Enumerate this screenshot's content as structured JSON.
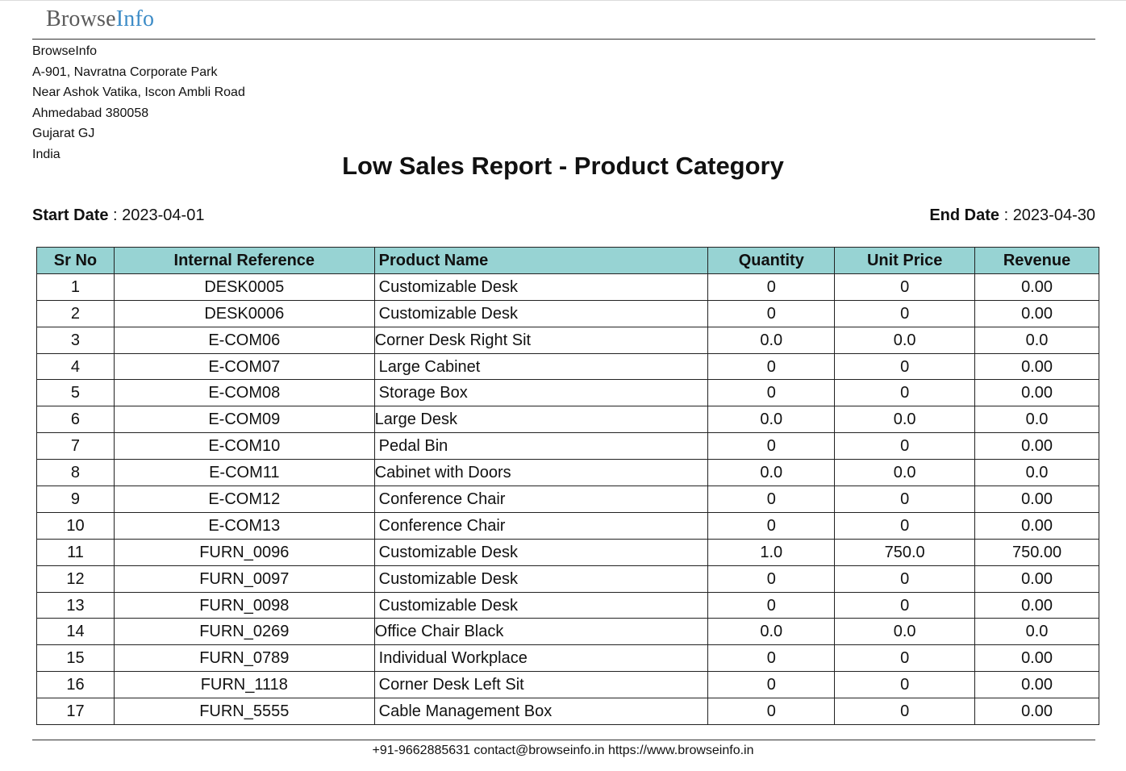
{
  "brand": {
    "part1": "Browse",
    "part2": "Info"
  },
  "company": {
    "lines": [
      "BrowseInfo",
      "A-901, Navratna Corporate Park",
      "Near Ashok Vatika, Iscon Ambli Road",
      "Ahmedabad 380058",
      "Gujarat GJ",
      "India"
    ]
  },
  "report": {
    "title": "Low Sales Report - Product Category",
    "start_label": "Start Date",
    "start_value": "2023-04-01",
    "end_label": "End Date",
    "end_value": "2023-04-30",
    "separator": " : "
  },
  "table": {
    "headers": [
      "Sr No",
      "Internal Reference",
      "Product Name",
      "Quantity",
      "Unit Price",
      "Revenue"
    ],
    "rows": [
      {
        "sr": "1",
        "ref": "DESK0005",
        "name": "Customizable Desk",
        "qty": "0",
        "price": "0",
        "revenue": "0.00",
        "tight": false
      },
      {
        "sr": "2",
        "ref": "DESK0006",
        "name": "Customizable Desk",
        "qty": "0",
        "price": "0",
        "revenue": "0.00",
        "tight": false
      },
      {
        "sr": "3",
        "ref": "E-COM06",
        "name": "Corner Desk Right Sit",
        "qty": "0.0",
        "price": "0.0",
        "revenue": "0.0",
        "tight": true
      },
      {
        "sr": "4",
        "ref": "E-COM07",
        "name": "Large Cabinet",
        "qty": "0",
        "price": "0",
        "revenue": "0.00",
        "tight": false
      },
      {
        "sr": "5",
        "ref": "E-COM08",
        "name": "Storage Box",
        "qty": "0",
        "price": "0",
        "revenue": "0.00",
        "tight": false
      },
      {
        "sr": "6",
        "ref": "E-COM09",
        "name": "Large Desk",
        "qty": "0.0",
        "price": "0.0",
        "revenue": "0.0",
        "tight": true
      },
      {
        "sr": "7",
        "ref": "E-COM10",
        "name": "Pedal Bin",
        "qty": "0",
        "price": "0",
        "revenue": "0.00",
        "tight": false
      },
      {
        "sr": "8",
        "ref": "E-COM11",
        "name": "Cabinet with Doors",
        "qty": "0.0",
        "price": "0.0",
        "revenue": "0.0",
        "tight": true
      },
      {
        "sr": "9",
        "ref": "E-COM12",
        "name": "Conference Chair",
        "qty": "0",
        "price": "0",
        "revenue": "0.00",
        "tight": false
      },
      {
        "sr": "10",
        "ref": "E-COM13",
        "name": "Conference Chair",
        "qty": "0",
        "price": "0",
        "revenue": "0.00",
        "tight": false
      },
      {
        "sr": "11",
        "ref": "FURN_0096",
        "name": "Customizable Desk",
        "qty": "1.0",
        "price": "750.0",
        "revenue": "750.00",
        "tight": false
      },
      {
        "sr": "12",
        "ref": "FURN_0097",
        "name": "Customizable Desk",
        "qty": "0",
        "price": "0",
        "revenue": "0.00",
        "tight": false
      },
      {
        "sr": "13",
        "ref": "FURN_0098",
        "name": "Customizable Desk",
        "qty": "0",
        "price": "0",
        "revenue": "0.00",
        "tight": false
      },
      {
        "sr": "14",
        "ref": "FURN_0269",
        "name": "Office Chair Black",
        "qty": "0.0",
        "price": "0.0",
        "revenue": "0.0",
        "tight": true
      },
      {
        "sr": "15",
        "ref": "FURN_0789",
        "name": "Individual Workplace",
        "qty": "0",
        "price": "0",
        "revenue": "0.00",
        "tight": false
      },
      {
        "sr": "16",
        "ref": "FURN_1118",
        "name": "Corner Desk Left Sit",
        "qty": "0",
        "price": "0",
        "revenue": "0.00",
        "tight": false
      },
      {
        "sr": "17",
        "ref": "FURN_5555",
        "name": "Cable Management Box",
        "qty": "0",
        "price": "0",
        "revenue": "0.00",
        "tight": false
      }
    ]
  },
  "footer": {
    "text": "+91-9662885631 contact@browseinfo.in https://www.browseinfo.in"
  },
  "colors": {
    "header_bg": "#97d3d3",
    "logo_accent": "#3d8cc7",
    "logo_text": "#5a5a5a"
  }
}
